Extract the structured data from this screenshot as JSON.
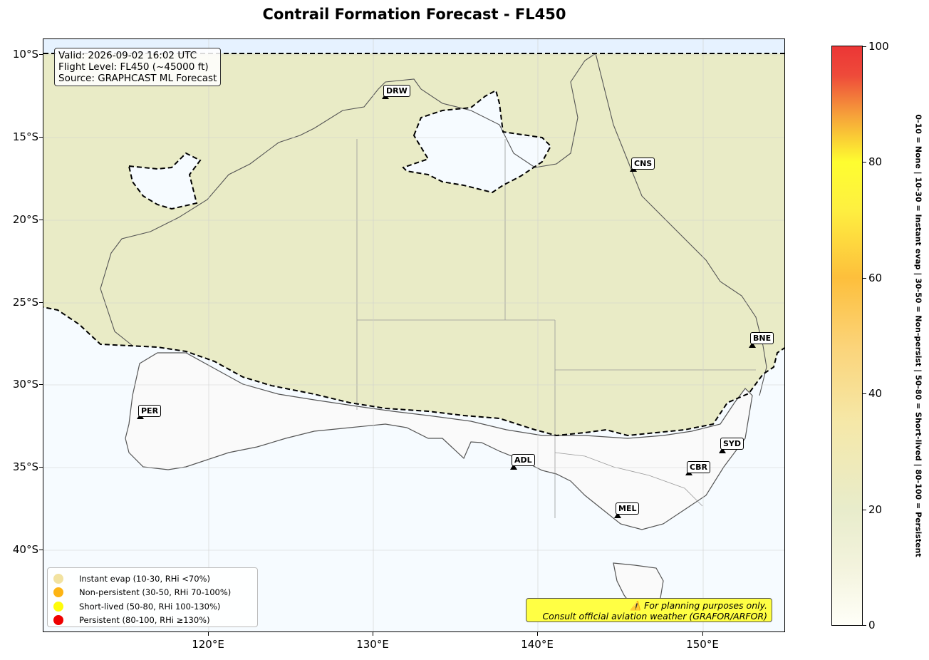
{
  "title": "Contrail Formation Forecast - FL450",
  "info": {
    "valid": "Valid: 2026-09-02 16:02 UTC",
    "flight_level": "Flight Level: FL450 (~45000 ft)",
    "source": "Source: GRAPHCAST ML Forecast"
  },
  "lat_labels": [
    "10°S",
    "15°S",
    "20°S",
    "25°S",
    "30°S",
    "35°S",
    "40°S"
  ],
  "lon_labels": [
    "120°E",
    "130°E",
    "140°E",
    "150°E"
  ],
  "cities": [
    "DRW",
    "CNS",
    "BNE",
    "PER",
    "ADL",
    "SYD",
    "CBR",
    "MEL"
  ],
  "legend": [
    {
      "label": "Instant evap (10-30, RHi <70%)",
      "color": "#f2e2a0"
    },
    {
      "label": "Non-persistent (30-50, RHi 70-100%)",
      "color": "#fdb414"
    },
    {
      "label": "Short-lived (50-80, RHi 100-130%)",
      "color": "#fefc0a"
    },
    {
      "label": "Persistent (80-100, RHi ≥130%)",
      "color": "#ee0000"
    }
  ],
  "disclaimer": {
    "line1": "⚠️ For planning purposes only.",
    "line2": "Consult official aviation weather (GRAFOR/ARFOR)"
  },
  "colorbar": {
    "ticks": [
      "0",
      "20",
      "40",
      "60",
      "80",
      "100"
    ],
    "description": "0-10 = None  |  10-30 = Instant evap  |  30-50 = Non-persist  |  50-80 = Short-lived  |  80-100 = Persistent"
  },
  "colors": {
    "field": "#e8eac4",
    "ocean": "#f6fbff",
    "land_low": "#f9f9f9"
  }
}
